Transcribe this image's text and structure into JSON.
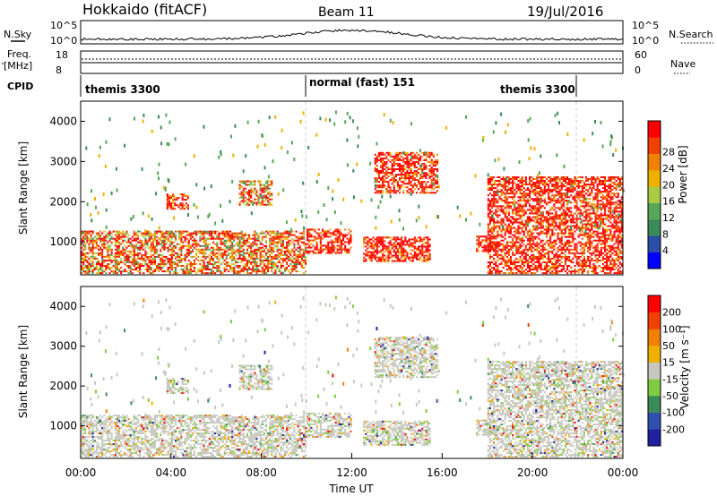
{
  "header": {
    "title": "Hokkaido (fitACF)",
    "beam": "Beam 11",
    "date": "19/Jul/2016"
  },
  "noise_panel": {
    "left_label": "N.Sky",
    "right_label": "N.Search",
    "left_ticks": [
      "10^5",
      "10^0"
    ],
    "right_ticks": [
      "10^5",
      "10^0"
    ]
  },
  "freq_panel": {
    "left_label_line1": "Freq.",
    "left_label_line2": "[MHz]",
    "left_ticks": [
      "18",
      "8"
    ],
    "right_label": "Nave",
    "right_ticks": [
      "60",
      "0"
    ]
  },
  "cpid_panel": {
    "label": "CPID",
    "segments": [
      {
        "name": "themis 3300",
        "start_hour": 0,
        "end_hour": 10
      },
      {
        "name": "normal (fast) 151",
        "start_hour": 10,
        "end_hour": 22
      },
      {
        "name": "themis 3300",
        "start_hour": 22,
        "end_hour": 24
      }
    ],
    "labels": [
      "themis 3300",
      "normal (fast) 151",
      "themis 3300"
    ]
  },
  "chart_data": [
    {
      "type": "heatmap",
      "name": "power",
      "ylabel": "Slant Range [km]",
      "yticks": [
        "1000",
        "2000",
        "3000",
        "4000"
      ],
      "ylim": [
        180,
        4500
      ],
      "xlim": [
        0,
        24
      ],
      "colorbar": {
        "label": "Power [dB]",
        "ticks": [
          "4",
          "8",
          "12",
          "16",
          "20",
          "24",
          "28"
        ],
        "range": [
          0,
          30
        ],
        "colors": [
          "#0000ff",
          "#2a4ea6",
          "#3a8a5a",
          "#57a65a",
          "#aacc44",
          "#f0b000",
          "#f08000",
          "#f04000",
          "#ff0000"
        ]
      },
      "echo_regions": [
        {
          "t0": 0.0,
          "t1": 10.0,
          "r0": 200,
          "r1": 1250,
          "level": "mixed"
        },
        {
          "t0": 3.8,
          "t1": 4.8,
          "r0": 1800,
          "r1": 2200,
          "level": "high"
        },
        {
          "t0": 7.0,
          "t1": 8.5,
          "r0": 1900,
          "r1": 2500,
          "level": "mixed"
        },
        {
          "t0": 10.0,
          "t1": 12.0,
          "r0": 700,
          "r1": 1300,
          "level": "high"
        },
        {
          "t0": 12.5,
          "t1": 15.5,
          "r0": 500,
          "r1": 1100,
          "level": "high"
        },
        {
          "t0": 13.0,
          "t1": 15.8,
          "r0": 2200,
          "r1": 3200,
          "level": "high"
        },
        {
          "t0": 17.5,
          "t1": 18.5,
          "r0": 750,
          "r1": 1150,
          "level": "high"
        },
        {
          "t0": 18.0,
          "t1": 24.0,
          "r0": 200,
          "r1": 2600,
          "level": "high"
        }
      ]
    },
    {
      "type": "heatmap",
      "name": "velocity",
      "ylabel": "Slant Range [km]",
      "yticks": [
        "1000",
        "2000",
        "3000",
        "4000"
      ],
      "ylim": [
        180,
        4500
      ],
      "xlim": [
        0,
        24
      ],
      "xlabel": "Time UT",
      "xticks": [
        "00:00",
        "04:00",
        "08:00",
        "12:00",
        "16:00",
        "20:00",
        "00:00"
      ],
      "colorbar": {
        "label": "Velocity [m s⁻¹]",
        "ticks": [
          "200",
          "100",
          "50",
          "15",
          "-15",
          "-50",
          "-100",
          "-200"
        ],
        "colors": [
          "#2020a0",
          "#3050b0",
          "#3a8a5a",
          "#80cc40",
          "#c8c8c0",
          "#f0b000",
          "#f08000",
          "#f04000",
          "#ff0000"
        ]
      }
    }
  ]
}
